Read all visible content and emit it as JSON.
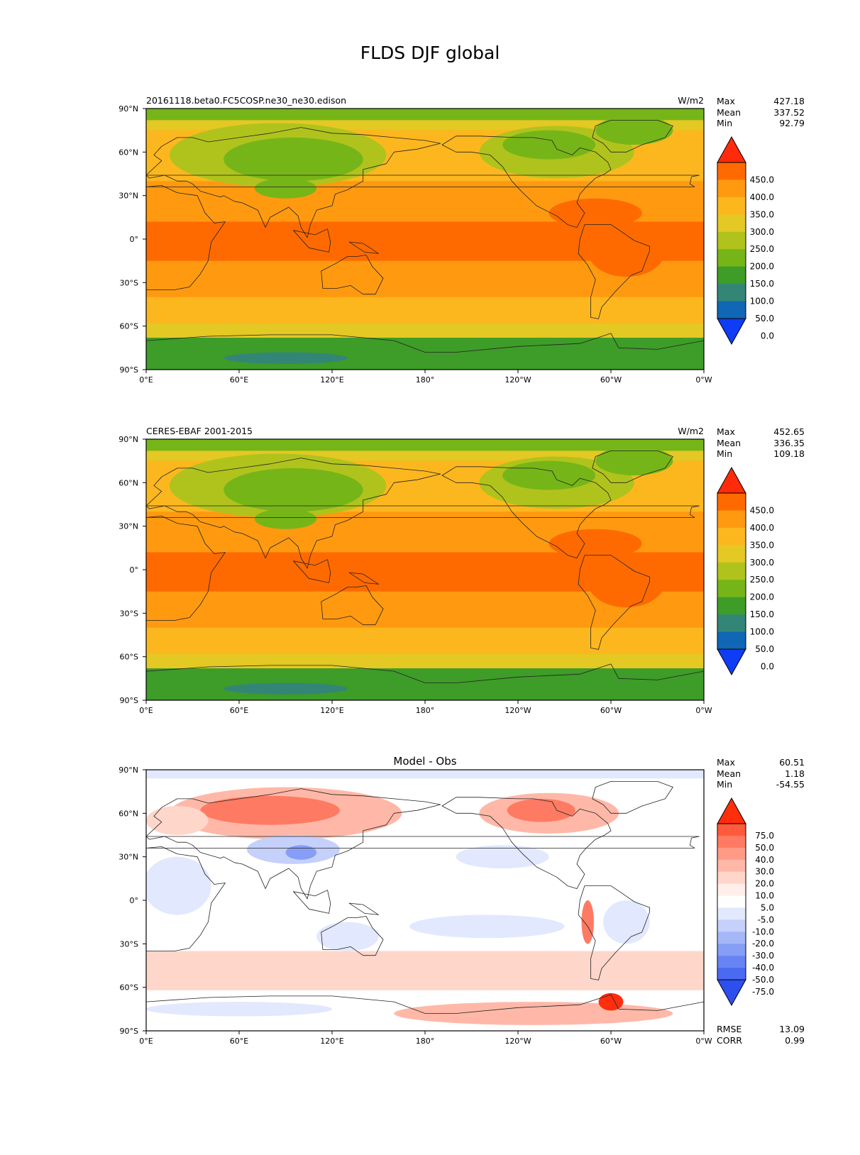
{
  "figure": {
    "title": "FLDS DJF global"
  },
  "chart_data": [
    {
      "type": "heatmap",
      "subplot": "model",
      "left_label": "20161118.beta0.FC5COSP.ne30_ne30.edison",
      "center_label": "",
      "units": "W/m2",
      "x_ticks": [
        "0°E",
        "60°E",
        "120°E",
        "180°",
        "120°W",
        "60°W",
        "0°W"
      ],
      "y_ticks": [
        "90°N",
        "60°N",
        "30°N",
        "0°",
        "30°S",
        "60°S",
        "90°S"
      ],
      "stats": [
        {
          "label": "Max",
          "value": "427.18"
        },
        {
          "label": "Mean",
          "value": "337.52"
        },
        {
          "label": "Min",
          "value": "92.79"
        }
      ],
      "colorbar": {
        "labels": [
          "450.0",
          "400.0",
          "350.0",
          "300.0",
          "250.0",
          "200.0",
          "150.0",
          "100.0",
          "50.0",
          "0.0"
        ],
        "colors": [
          "#ff2b0a",
          "#ff6a00",
          "#ff9a10",
          "#fdb71e",
          "#e4c823",
          "#b0c31c",
          "#76b518",
          "#3e9c28",
          "#338676",
          "#0f67b5",
          "#0f3cf5"
        ]
      },
      "field_colors": {
        "ocean_tropics": "#ff6a00",
        "ocean_sub": "#ff9a10",
        "ocean_mid": "#fdb71e",
        "ocean_high": "#e4c823",
        "land_cold": "#76b518",
        "land_mid": "#b0c31c",
        "polar": "#3e9c28",
        "antarctic_low": "#338676"
      }
    },
    {
      "type": "heatmap",
      "subplot": "obs",
      "left_label": "CERES-EBAF 2001-2015",
      "center_label": "",
      "units": "W/m2",
      "x_ticks": [
        "0°E",
        "60°E",
        "120°E",
        "180°",
        "120°W",
        "60°W",
        "0°W"
      ],
      "y_ticks": [
        "90°N",
        "60°N",
        "30°N",
        "0°",
        "30°S",
        "60°S",
        "90°S"
      ],
      "stats": [
        {
          "label": "Max",
          "value": "452.65"
        },
        {
          "label": "Mean",
          "value": "336.35"
        },
        {
          "label": "Min",
          "value": "109.18"
        }
      ],
      "colorbar": {
        "labels": [
          "450.0",
          "400.0",
          "350.0",
          "300.0",
          "250.0",
          "200.0",
          "150.0",
          "100.0",
          "50.0",
          "0.0"
        ],
        "colors": [
          "#ff2b0a",
          "#ff6a00",
          "#ff9a10",
          "#fdb71e",
          "#e4c823",
          "#b0c31c",
          "#76b518",
          "#3e9c28",
          "#338676",
          "#0f67b5",
          "#0f3cf5"
        ]
      },
      "field_colors": {
        "ocean_tropics": "#ff6a00",
        "ocean_sub": "#ff9a10",
        "ocean_mid": "#fdb71e",
        "ocean_high": "#e4c823",
        "land_cold": "#76b518",
        "land_mid": "#b0c31c",
        "polar": "#3e9c28",
        "antarctic_low": "#338676"
      }
    },
    {
      "type": "heatmap",
      "subplot": "diff",
      "left_label": "",
      "center_label": "Model - Obs",
      "units": "",
      "x_ticks": [
        "0°E",
        "60°E",
        "120°E",
        "180°",
        "120°W",
        "60°W",
        "0°W"
      ],
      "y_ticks": [
        "90°N",
        "60°N",
        "30°N",
        "0°",
        "30°S",
        "60°S",
        "90°S"
      ],
      "stats": [
        {
          "label": "Max",
          "value": "60.51"
        },
        {
          "label": "Mean",
          "value": "1.18"
        },
        {
          "label": "Min",
          "value": "-54.55"
        }
      ],
      "bottom_stats": [
        {
          "label": "RMSE",
          "value": "13.09"
        },
        {
          "label": "CORR",
          "value": "0.99"
        }
      ],
      "colorbar": {
        "labels": [
          "75.0",
          "50.0",
          "40.0",
          "30.0",
          "20.0",
          "10.0",
          "5.0",
          "-5.0",
          "-10.0",
          "-20.0",
          "-30.0",
          "-40.0",
          "-50.0",
          "-75.0"
        ],
        "colors": [
          "#ff2e0c",
          "#ff5a3c",
          "#ff7a62",
          "#ff9a86",
          "#ffb8a8",
          "#ffd6ca",
          "#ffeeea",
          "#ffffff",
          "#e2e8fd",
          "#c5d0fb",
          "#a6b7f8",
          "#879ef6",
          "#6884f4",
          "#4a6af2",
          "#2d4ff0"
        ]
      },
      "field_colors": {
        "neutral": "#ffffff",
        "pos_weak": "#ffd6ca",
        "pos_mid": "#ffb8a8",
        "pos_strong": "#ff7a62",
        "pos_max": "#ff2e0c",
        "neg_weak": "#e2e8fd",
        "neg_mid": "#c5d0fb",
        "neg_strong": "#879ef6"
      }
    }
  ]
}
